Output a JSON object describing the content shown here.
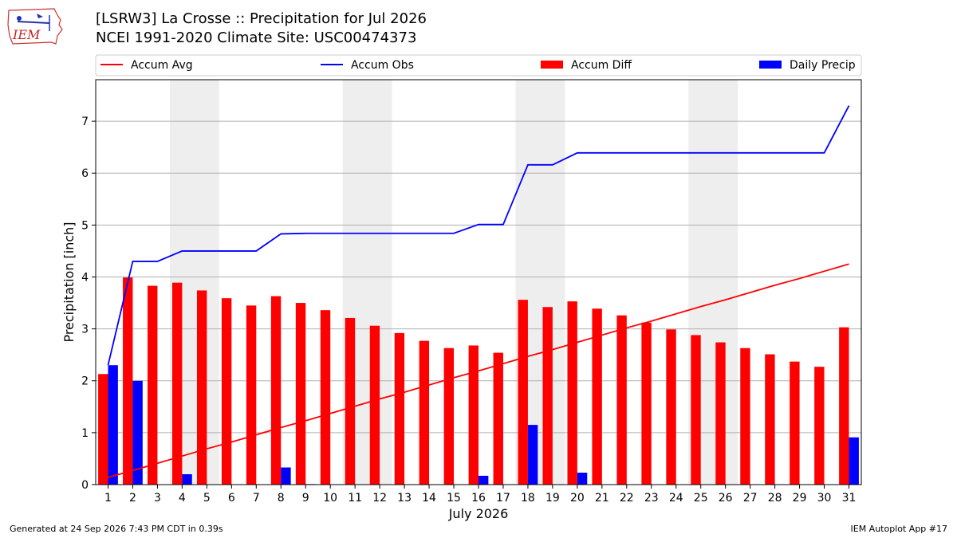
{
  "header": {
    "title_line1": "[LSRW3] La Crosse :: Precipitation for Jul 2026",
    "title_line2": "NCEI 1991-2020 Climate Site: USC00474373",
    "logo_text": "IEM"
  },
  "footer": {
    "generated": "Generated at 24 Sep 2026 7:43 PM CDT in 0.39s",
    "app": "IEM Autoplot App #17"
  },
  "colors": {
    "accum_avg": "#ff0000",
    "accum_obs": "#0000ff",
    "accum_diff": "#ff0000",
    "daily_precip": "#0000ff",
    "weekend_shade": "#eeeeee",
    "grid": "#b0b0b0"
  },
  "chart_data": {
    "type": "bar",
    "xlabel": "July 2026",
    "ylabel": "Precipitation [inch]",
    "ylim": [
      0,
      7.8
    ],
    "yticks": [
      0,
      1,
      2,
      3,
      4,
      5,
      6,
      7
    ],
    "grid": "horizontal",
    "legend_position": "top",
    "days": [
      1,
      2,
      3,
      4,
      5,
      6,
      7,
      8,
      9,
      10,
      11,
      12,
      13,
      14,
      15,
      16,
      17,
      18,
      19,
      20,
      21,
      22,
      23,
      24,
      25,
      26,
      27,
      28,
      29,
      30,
      31
    ],
    "shaded_days": [
      [
        4,
        5
      ],
      [
        11,
        12
      ],
      [
        18,
        19
      ],
      [
        25,
        26
      ]
    ],
    "series": [
      {
        "name": "Accum Avg",
        "kind": "line",
        "values": [
          0.14,
          0.27,
          0.41,
          0.55,
          0.69,
          0.82,
          0.96,
          1.1,
          1.23,
          1.37,
          1.51,
          1.65,
          1.78,
          1.92,
          2.06,
          2.19,
          2.33,
          2.47,
          2.6,
          2.74,
          2.88,
          3.02,
          3.15,
          3.29,
          3.43,
          3.56,
          3.7,
          3.84,
          3.97,
          4.11,
          4.25
        ]
      },
      {
        "name": "Accum Obs",
        "kind": "line",
        "values": [
          2.3,
          4.3,
          4.3,
          4.5,
          4.5,
          4.5,
          4.5,
          4.83,
          4.84,
          4.84,
          4.84,
          4.84,
          4.84,
          4.84,
          4.84,
          5.01,
          5.01,
          6.16,
          6.16,
          6.39,
          6.39,
          6.39,
          6.39,
          6.39,
          6.39,
          6.39,
          6.39,
          6.39,
          6.39,
          6.39,
          7.3
        ]
      },
      {
        "name": "Accum Diff",
        "kind": "bar",
        "values": [
          2.13,
          3.99,
          3.83,
          3.89,
          3.74,
          3.59,
          3.45,
          3.63,
          3.5,
          3.36,
          3.21,
          3.06,
          2.92,
          2.77,
          2.63,
          2.68,
          2.54,
          3.56,
          3.42,
          3.53,
          3.39,
          3.26,
          3.12,
          2.99,
          2.88,
          2.74,
          2.63,
          2.51,
          2.37,
          2.27,
          3.03
        ]
      },
      {
        "name": "Daily Precip",
        "kind": "bar",
        "values": [
          2.3,
          2.0,
          0,
          0.2,
          0,
          0,
          0,
          0.33,
          0.01,
          0,
          0,
          0,
          0,
          0,
          0,
          0.17,
          0,
          1.15,
          0,
          0.23,
          0,
          0,
          0,
          0,
          0,
          0,
          0,
          0,
          0,
          0,
          0.91
        ]
      }
    ]
  }
}
